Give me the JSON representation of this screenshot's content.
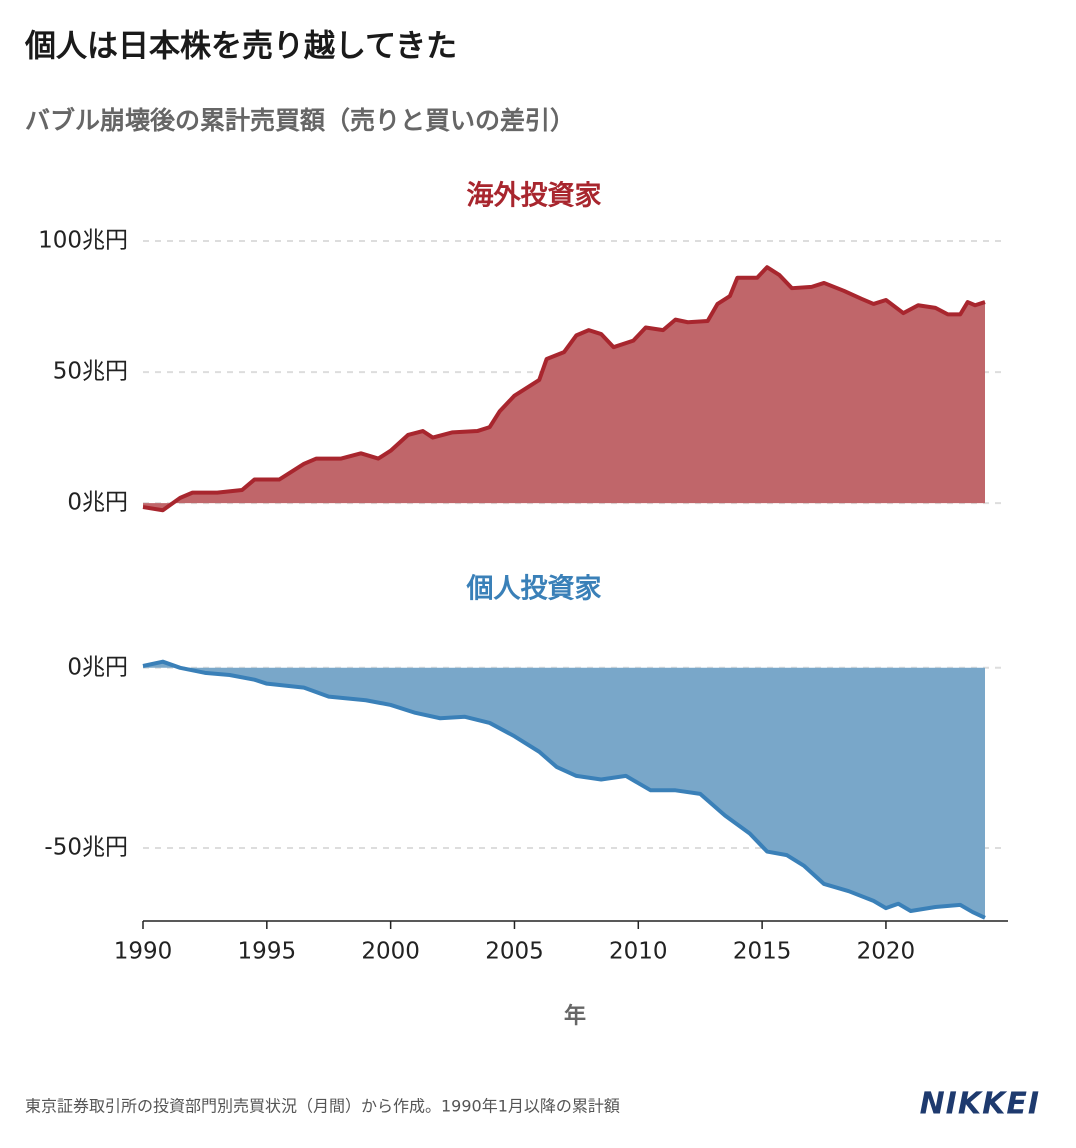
{
  "title": "個人は日本株を売り越してきた",
  "subtitle": "バブル崩壊後の累計売買額（売りと買いの差引）",
  "chart_data": [
    {
      "type": "area",
      "title": "海外投資家",
      "color": "#a8262e",
      "fill": "#c0666a",
      "x": [
        1990,
        1990.8,
        1991.5,
        1992,
        1993,
        1994,
        1994.5,
        1995.5,
        1996.5,
        1997,
        1998,
        1998.8,
        1999.5,
        2000,
        2000.7,
        2001.3,
        2001.7,
        2002.5,
        2003.5,
        2004,
        2004.4,
        2005,
        2006,
        2006.3,
        2007,
        2007.5,
        2008,
        2008.5,
        2009,
        2009.8,
        2010.3,
        2011,
        2011.5,
        2012,
        2012.8,
        2013.2,
        2013.7,
        2014,
        2014.8,
        2015.2,
        2015.7,
        2016.2,
        2017,
        2017.5,
        2018.3,
        2019,
        2019.5,
        2020,
        2020.7,
        2021.3,
        2022,
        2022.5,
        2023,
        2023.3,
        2023.6,
        2024
      ],
      "values": [
        -1.5,
        -2.7,
        2,
        4,
        4,
        5,
        9,
        9,
        15,
        17,
        17,
        19,
        17,
        20,
        26,
        27.5,
        25,
        27,
        27.5,
        29,
        35,
        41,
        47,
        55,
        57.6,
        64,
        66,
        64.5,
        59.5,
        62,
        67,
        66,
        70,
        69,
        69.5,
        76,
        79,
        86,
        86,
        90,
        87,
        82,
        82.5,
        84,
        81,
        78,
        76,
        77.5,
        72.5,
        75.5,
        74.5,
        72,
        72,
        76.7,
        75.5,
        76.7
      ],
      "xlim": [
        1990,
        2024
      ],
      "ylim": [
        -3,
        100
      ],
      "yticks": [
        {
          "value": 0,
          "label": "0兆円"
        },
        {
          "value": 50,
          "label": "50兆円"
        },
        {
          "value": 100,
          "label": "100兆円"
        }
      ],
      "grid": true
    },
    {
      "type": "area",
      "title": "個人投資家",
      "color": "#3a80b8",
      "fill": "#79a7c9",
      "x": [
        1990,
        1990.8,
        1991.5,
        1992.5,
        1993.5,
        1994.5,
        1995,
        1996.5,
        1997.5,
        1999,
        2000,
        2001,
        2002,
        2003,
        2004,
        2005,
        2006,
        2006.7,
        2007.5,
        2008.5,
        2009.5,
        2010.5,
        2011.5,
        2012.5,
        2013.5,
        2014.5,
        2015.2,
        2016,
        2016.7,
        2017.5,
        2018.5,
        2019.5,
        2020,
        2020.5,
        2021,
        2022,
        2023,
        2023.5,
        2024
      ],
      "values": [
        0.5,
        1.7,
        0,
        -1.4,
        -2,
        -3.3,
        -4.4,
        -5.5,
        -8,
        -9,
        -10.3,
        -12.5,
        -14,
        -13.6,
        -15.3,
        -19,
        -23.3,
        -27.5,
        -30,
        -31,
        -30,
        -34,
        -34,
        -35,
        -41,
        -46,
        -51,
        -52,
        -55,
        -60,
        -62,
        -64.7,
        -66.7,
        -65.5,
        -67.5,
        -66.4,
        -65.8,
        -67.8,
        -69.4
      ],
      "xlim": [
        1990,
        2024
      ],
      "ylim": [
        -70,
        3
      ],
      "xticks": [
        1990,
        1995,
        2000,
        2005,
        2010,
        2015,
        2020
      ],
      "yticks": [
        {
          "value": -50,
          "label": "-50兆円"
        },
        {
          "value": 0,
          "label": "0兆円"
        }
      ],
      "xlabel": "年",
      "grid": true
    }
  ],
  "source": "東京証券取引所の投資部門別売買状況（月間）から作成。1990年1月以降の累計額",
  "logo": "NIKKEI"
}
